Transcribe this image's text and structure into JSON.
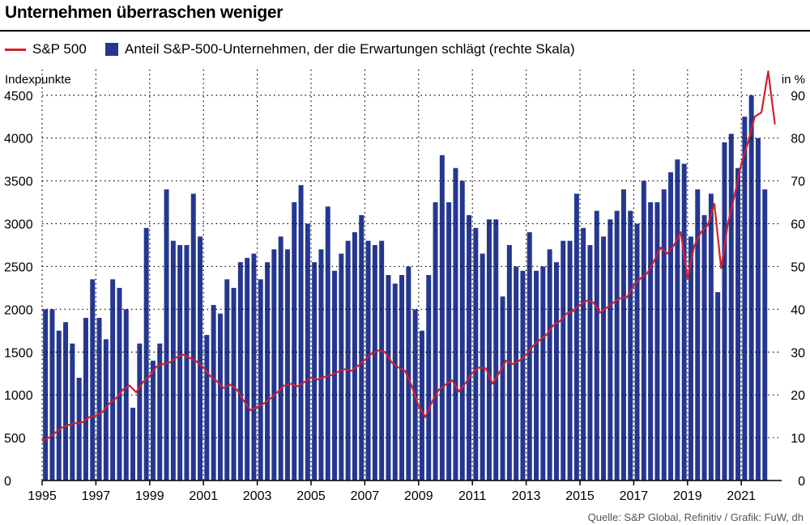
{
  "title": "Unternehmen überraschen weniger",
  "legend": {
    "line_label": "S&P 500",
    "bar_label": "Anteil S&P-500-Unternehmen, der die Erwartungen schlägt (rechte Skala)"
  },
  "left_axis_title": "Indexpunkte",
  "right_axis_title": "in %",
  "source": "Quelle: S&P Global, Refinitiv / Grafik: FuW, dh",
  "colors": {
    "bars": "#25378f",
    "line": "#d0202e",
    "grid": "#000000",
    "text": "#000000"
  },
  "chart_data": {
    "type": "bar+line",
    "title": "Unternehmen überraschen weniger",
    "x_range": [
      1995.0,
      2022.5
    ],
    "x_ticks": [
      "1995",
      "1997",
      "1999",
      "2001",
      "2003",
      "2005",
      "2007",
      "2009",
      "2011",
      "2013",
      "2015",
      "2017",
      "2019",
      "2021"
    ],
    "left_axis": {
      "label": "Indexpunkte",
      "range": [
        0,
        4800
      ],
      "ticks": [
        0,
        500,
        1000,
        1500,
        2000,
        2500,
        3000,
        3500,
        4000,
        4500
      ]
    },
    "right_axis": {
      "label": "in %",
      "range": [
        0,
        96
      ],
      "ticks": [
        0,
        10,
        20,
        30,
        40,
        50,
        60,
        70,
        80,
        90
      ]
    },
    "bars": {
      "name": "Anteil S&P-500-Unternehmen, der die Erwartungen schlägt (rechte Skala)",
      "axis": "right",
      "start_year": 1995,
      "step": 0.25,
      "values": [
        40,
        40,
        35,
        37,
        32,
        24,
        38,
        47,
        38,
        33,
        47,
        45,
        40,
        17,
        32,
        59,
        28,
        32,
        68,
        56,
        55,
        55,
        67,
        57,
        34,
        41,
        39,
        47,
        45,
        51,
        52,
        53,
        47,
        51,
        54,
        57,
        54,
        65,
        69,
        60,
        51,
        54,
        64,
        49,
        53,
        56,
        58,
        62,
        56,
        55,
        56,
        48,
        46,
        48,
        50,
        40,
        35,
        48,
        65,
        76,
        65,
        73,
        70,
        62,
        59,
        53,
        61,
        61,
        43,
        55,
        50,
        49,
        58,
        49,
        50,
        54,
        51,
        56,
        56,
        67,
        59,
        55,
        63,
        57,
        61,
        63,
        68,
        63,
        60,
        70,
        65,
        65,
        68,
        72,
        75,
        74,
        57,
        68,
        62,
        67,
        44,
        79,
        81,
        73,
        85,
        90,
        80,
        68
      ]
    },
    "line": {
      "name": "S&P 500",
      "axis": "left",
      "points": [
        [
          1995.0,
          460
        ],
        [
          1995.25,
          500
        ],
        [
          1995.5,
          560
        ],
        [
          1995.75,
          620
        ],
        [
          1996.0,
          650
        ],
        [
          1996.25,
          670
        ],
        [
          1996.5,
          680
        ],
        [
          1996.75,
          740
        ],
        [
          1997.0,
          760
        ],
        [
          1997.25,
          800
        ],
        [
          1997.5,
          900
        ],
        [
          1997.75,
          960
        ],
        [
          1998.0,
          1060
        ],
        [
          1998.25,
          1110
        ],
        [
          1998.5,
          1030
        ],
        [
          1998.75,
          1150
        ],
        [
          1999.0,
          1220
        ],
        [
          1999.25,
          1330
        ],
        [
          1999.5,
          1360
        ],
        [
          1999.75,
          1380
        ],
        [
          2000.0,
          1440
        ],
        [
          2000.25,
          1470
        ],
        [
          2000.5,
          1430
        ],
        [
          2000.75,
          1390
        ],
        [
          2001.0,
          1320
        ],
        [
          2001.25,
          1220
        ],
        [
          2001.5,
          1160
        ],
        [
          2001.75,
          1080
        ],
        [
          2002.0,
          1120
        ],
        [
          2002.25,
          1060
        ],
        [
          2002.5,
          930
        ],
        [
          2002.75,
          820
        ],
        [
          2003.0,
          860
        ],
        [
          2003.25,
          900
        ],
        [
          2003.5,
          960
        ],
        [
          2003.75,
          1030
        ],
        [
          2004.0,
          1110
        ],
        [
          2004.25,
          1130
        ],
        [
          2004.5,
          1100
        ],
        [
          2004.75,
          1150
        ],
        [
          2005.0,
          1200
        ],
        [
          2005.25,
          1180
        ],
        [
          2005.5,
          1210
        ],
        [
          2005.75,
          1230
        ],
        [
          2006.0,
          1270
        ],
        [
          2006.25,
          1300
        ],
        [
          2006.5,
          1280
        ],
        [
          2006.75,
          1340
        ],
        [
          2007.0,
          1410
        ],
        [
          2007.25,
          1480
        ],
        [
          2007.5,
          1520
        ],
        [
          2007.75,
          1500
        ],
        [
          2008.0,
          1380
        ],
        [
          2008.25,
          1320
        ],
        [
          2008.5,
          1280
        ],
        [
          2008.75,
          1100
        ],
        [
          2009.0,
          870
        ],
        [
          2009.25,
          740
        ],
        [
          2009.5,
          920
        ],
        [
          2009.75,
          1060
        ],
        [
          2010.0,
          1120
        ],
        [
          2010.25,
          1170
        ],
        [
          2010.5,
          1040
        ],
        [
          2010.75,
          1140
        ],
        [
          2011.0,
          1260
        ],
        [
          2011.25,
          1320
        ],
        [
          2011.5,
          1310
        ],
        [
          2011.75,
          1130
        ],
        [
          2012.0,
          1260
        ],
        [
          2012.25,
          1400
        ],
        [
          2012.5,
          1360
        ],
        [
          2012.75,
          1400
        ],
        [
          2013.0,
          1470
        ],
        [
          2013.25,
          1570
        ],
        [
          2013.5,
          1640
        ],
        [
          2013.75,
          1700
        ],
        [
          2014.0,
          1810
        ],
        [
          2014.25,
          1860
        ],
        [
          2014.5,
          1950
        ],
        [
          2014.75,
          1980
        ],
        [
          2015.0,
          2050
        ],
        [
          2015.25,
          2100
        ],
        [
          2015.5,
          2080
        ],
        [
          2015.75,
          1960
        ],
        [
          2016.0,
          2020
        ],
        [
          2016.25,
          2080
        ],
        [
          2016.5,
          2130
        ],
        [
          2016.75,
          2140
        ],
        [
          2017.0,
          2280
        ],
        [
          2017.25,
          2360
        ],
        [
          2017.5,
          2420
        ],
        [
          2017.75,
          2560
        ],
        [
          2018.0,
          2720
        ],
        [
          2018.25,
          2650
        ],
        [
          2018.5,
          2750
        ],
        [
          2018.75,
          2900
        ],
        [
          2019.0,
          2360
        ],
        [
          2019.25,
          2740
        ],
        [
          2019.5,
          2900
        ],
        [
          2019.75,
          2980
        ],
        [
          2020.0,
          3230
        ],
        [
          2020.25,
          2480
        ],
        [
          2020.5,
          3000
        ],
        [
          2020.75,
          3330
        ],
        [
          2021.0,
          3700
        ],
        [
          2021.25,
          3950
        ],
        [
          2021.5,
          4250
        ],
        [
          2021.75,
          4300
        ],
        [
          2022.0,
          4780
        ],
        [
          2022.25,
          4160
        ]
      ]
    }
  }
}
